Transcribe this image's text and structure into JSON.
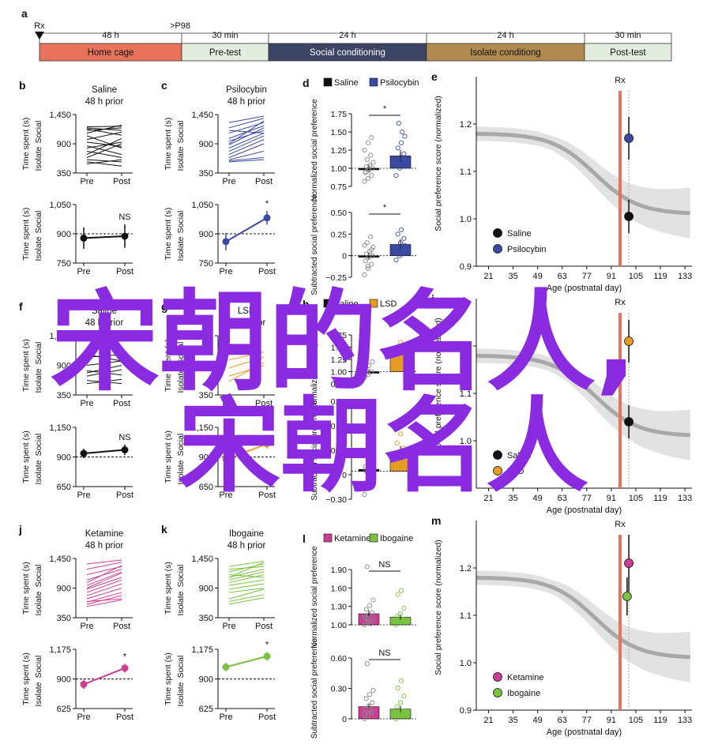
{
  "timeline": {
    "panel_letter": "a",
    "rx_label": "Rx",
    "p98_label": ">P98",
    "segments": [
      {
        "duration": "48 h",
        "label": "Home cage",
        "color": "#e8735a"
      },
      {
        "duration": "30 min",
        "label": "Pre-test",
        "color": "#e3ecdf"
      },
      {
        "duration": "24 h",
        "label": "Social conditioning",
        "color": "#3b4463"
      },
      {
        "duration": "24 h",
        "label": "Isolate conditiong",
        "color": "#b08a4e"
      },
      {
        "duration": "30 min",
        "label": "Post-test",
        "color": "#e3ecdf"
      }
    ]
  },
  "chart_data": [
    {
      "panel": "b",
      "type": "line",
      "title": "Saline",
      "subtitle": "48 h prior",
      "ylabel": "Time spent (s)",
      "ylabel_top": "Social",
      "ylabel_bottom": "Isolate",
      "categories": [
        "Pre",
        "Post"
      ],
      "yticks": [
        "1,450",
        "900",
        "350"
      ],
      "ylim": [
        350,
        1450
      ],
      "color": "#111111",
      "lines": [
        [
          1050,
          820
        ],
        [
          1150,
          1200
        ],
        [
          1220,
          1230
        ],
        [
          980,
          1120
        ],
        [
          760,
          640
        ],
        [
          640,
          900
        ],
        [
          560,
          480
        ],
        [
          1180,
          1060
        ],
        [
          860,
          700
        ],
        [
          700,
          1000
        ],
        [
          1100,
          1250
        ],
        [
          520,
          600
        ],
        [
          930,
          850
        ],
        [
          1200,
          1150
        ],
        [
          600,
          560
        ],
        [
          820,
          930
        ]
      ]
    },
    {
      "panel": "c",
      "type": "line",
      "title": "Psilocybin",
      "subtitle": "48 h prior",
      "ylabel": "Time spent (s)",
      "ylabel_top": "Social",
      "ylabel_bottom": "Isolate",
      "categories": [
        "Pre",
        "Post"
      ],
      "yticks": [
        "1,450",
        "900",
        "350"
      ],
      "ylim": [
        350,
        1450
      ],
      "color": "#3b4aa0",
      "lines": [
        [
          1300,
          1420
        ],
        [
          1200,
          1380
        ],
        [
          1100,
          1300
        ],
        [
          1000,
          1240
        ],
        [
          950,
          1150
        ],
        [
          880,
          1200
        ],
        [
          820,
          1100
        ],
        [
          760,
          1050
        ],
        [
          700,
          980
        ],
        [
          640,
          900
        ],
        [
          600,
          760
        ],
        [
          580,
          640
        ],
        [
          900,
          1330
        ],
        [
          1150,
          1100
        ],
        [
          560,
          600
        ]
      ]
    },
    {
      "panel": "b2",
      "type": "errorbar",
      "ylabel": "Time spent (s)",
      "ylabel_top": "Social",
      "ylabel_bottom": "Isolate",
      "categories": [
        "Pre",
        "Post"
      ],
      "yticks": [
        "1,050",
        "900",
        "750"
      ],
      "ylim": [
        750,
        1050
      ],
      "means": [
        878,
        888
      ],
      "errors": [
        55,
        60
      ],
      "ref": 900,
      "annotation": "NS",
      "color": "#111111"
    },
    {
      "panel": "c2",
      "type": "errorbar",
      "ylabel": "Time spent (s)",
      "ylabel_top": "Social",
      "ylabel_bottom": "Isolate",
      "categories": [
        "Pre",
        "Post"
      ],
      "yticks": [
        "1,050",
        "900",
        "750"
      ],
      "ylim": [
        750,
        1050
      ],
      "means": [
        860,
        982
      ],
      "errors": [
        45,
        35
      ],
      "ref": 900,
      "annotation": "*",
      "color": "#3b4aa0"
    },
    {
      "panel": "f",
      "type": "line",
      "title": "Saline",
      "subtitle": "48 h prior",
      "ylabel": "Time spent (s)",
      "ylabel_top": "Social",
      "ylabel_bottom": "Isolate",
      "categories": [
        "Pre",
        "Post"
      ],
      "yticks": [
        "1,450",
        "900",
        "350"
      ],
      "ylim": [
        350,
        1450
      ],
      "color": "#111111",
      "lines": [
        [
          1050,
          1100
        ],
        [
          900,
          980
        ],
        [
          800,
          720
        ],
        [
          700,
          820
        ],
        [
          620,
          560
        ],
        [
          560,
          640
        ],
        [
          1100,
          980
        ],
        [
          760,
          900
        ]
      ]
    },
    {
      "panel": "g",
      "type": "line",
      "title": "LSD",
      "subtitle": "48 h prior",
      "ylabel": "Time spent (s)",
      "ylabel_top": "Social",
      "ylabel_bottom": "Isolate",
      "categories": [
        "Pre",
        "Post"
      ],
      "yticks": [
        "1,450",
        "900",
        "350"
      ],
      "ylim": [
        350,
        1450
      ],
      "color": "#e69c24",
      "lines": [
        [
          1000,
          1150
        ],
        [
          850,
          1050
        ],
        [
          700,
          900
        ],
        [
          600,
          950
        ]
      ]
    },
    {
      "panel": "f2",
      "type": "errorbar",
      "ylabel": "Time spent (s)",
      "ylabel_top": "Social",
      "ylabel_bottom": "Isolate",
      "categories": [
        "Pre",
        "Post"
      ],
      "yticks": [
        "1,150",
        "900",
        "650"
      ],
      "ylim": [
        650,
        1150
      ],
      "means": [
        930,
        960
      ],
      "errors": [
        40,
        45
      ],
      "ref": 900,
      "annotation": "NS",
      "color": "#111111"
    },
    {
      "panel": "g2",
      "type": "errorbar",
      "ylabel": "Time spent (s)",
      "ylabel_top": "Social",
      "ylabel_bottom": "Isolate",
      "categories": [
        "Pre",
        "Post"
      ],
      "yticks": [
        "1,150",
        "900",
        "650"
      ],
      "ylim": [
        650,
        1150
      ],
      "means": [
        880,
        1010
      ],
      "errors": [
        40,
        40
      ],
      "ref": 900,
      "annotation": "",
      "color": "#e69c24"
    },
    {
      "panel": "j",
      "type": "line",
      "title": "Ketamine",
      "subtitle": "48 h prior",
      "ylabel": "Time spent (s)",
      "ylabel_top": "Social",
      "ylabel_bottom": "Isolate",
      "categories": [
        "Pre",
        "Post"
      ],
      "yticks": [
        "1,450",
        "900",
        "350"
      ],
      "ylim": [
        350,
        1450
      ],
      "color": "#cc3d93",
      "lines": [
        [
          1350,
          1420
        ],
        [
          1250,
          1380
        ],
        [
          1150,
          1300
        ],
        [
          1050,
          1250
        ],
        [
          950,
          1200
        ],
        [
          880,
          1100
        ],
        [
          820,
          1050
        ],
        [
          760,
          980
        ],
        [
          700,
          900
        ],
        [
          640,
          820
        ],
        [
          600,
          760
        ],
        [
          560,
          680
        ],
        [
          1000,
          1320
        ],
        [
          900,
          1180
        ],
        [
          650,
          700
        ]
      ]
    },
    {
      "panel": "k",
      "type": "line",
      "title": "Ibogaine",
      "subtitle": "48 h prior",
      "ylabel": "Time spent (s)",
      "ylabel_top": "Social",
      "ylabel_bottom": "Isolate",
      "categories": [
        "Pre",
        "Post"
      ],
      "yticks": [
        "1,450",
        "900",
        "350"
      ],
      "ylim": [
        350,
        1450
      ],
      "color": "#7cc242",
      "lines": [
        [
          1300,
          1400
        ],
        [
          1200,
          1350
        ],
        [
          1100,
          1250
        ],
        [
          1050,
          1200
        ],
        [
          1150,
          1100
        ],
        [
          1000,
          1150
        ],
        [
          950,
          1050
        ],
        [
          880,
          980
        ],
        [
          820,
          900
        ],
        [
          700,
          880
        ],
        [
          650,
          780
        ],
        [
          600,
          720
        ],
        [
          1250,
          1300
        ],
        [
          1100,
          1380
        ]
      ]
    },
    {
      "panel": "j2",
      "type": "errorbar",
      "ylabel": "Time spent (s)",
      "ylabel_top": "Social",
      "ylabel_bottom": "Isolate",
      "categories": [
        "Pre",
        "Post"
      ],
      "yticks": [
        "1,175",
        "900",
        "625"
      ],
      "ylim": [
        625,
        1175
      ],
      "means": [
        850,
        1000
      ],
      "errors": [
        45,
        40
      ],
      "ref": 900,
      "annotation": "*",
      "color": "#cc3d93"
    },
    {
      "panel": "k2",
      "type": "errorbar",
      "ylabel": "Time spent (s)",
      "ylabel_top": "Social",
      "ylabel_bottom": "Isolate",
      "categories": [
        "Pre",
        "Post"
      ],
      "yticks": [
        "1,175",
        "900",
        "625"
      ],
      "ylim": [
        625,
        1175
      ],
      "means": [
        1010,
        1110
      ],
      "errors": [
        40,
        40
      ],
      "ref": 900,
      "annotation": "*",
      "color": "#7cc242"
    },
    {
      "panel": "d",
      "type": "bar",
      "legend": [
        "Saline",
        "Psilocybin"
      ],
      "colors": [
        "#111111",
        "#3b4aa0"
      ],
      "ylabel": "Normalized social preference",
      "yticks": [
        "1.75",
        "1.50",
        "1.25",
        "1.00",
        "0.75"
      ],
      "ylim": [
        0.75,
        1.75
      ],
      "values": [
        1.0,
        1.17
      ],
      "errors": [
        0.05,
        0.08
      ],
      "baseline": 1.0,
      "annotation": "*",
      "points": [
        [
          0.82,
          0.86,
          0.9,
          0.94,
          0.97,
          1.0,
          1.02,
          1.04,
          1.08,
          1.12,
          1.18,
          1.25,
          1.35,
          1.42,
          0.95,
          0.99
        ],
        [
          0.9,
          1.0,
          1.05,
          1.1,
          1.15,
          1.2,
          1.28,
          1.35,
          1.44,
          1.62,
          1.5,
          1.08
        ]
      ]
    },
    {
      "panel": "d2",
      "type": "bar",
      "ylabel": "Subtracted social preference",
      "yticks": [
        "0.50",
        "0.25",
        "0",
        "−0.25"
      ],
      "ylim": [
        -0.25,
        0.5
      ],
      "values": [
        0.0,
        0.13
      ],
      "errors": [
        0.04,
        0.06
      ],
      "baseline": 0,
      "annotation": "*",
      "points": [
        [
          -0.22,
          -0.15,
          -0.1,
          -0.06,
          -0.02,
          0.0,
          0.02,
          0.05,
          0.1,
          0.15,
          0.22,
          0.12,
          -0.12,
          0.07
        ],
        [
          -0.05,
          0.0,
          0.05,
          0.1,
          0.15,
          0.2,
          0.25,
          0.3,
          0.12,
          0.08,
          0.02
        ]
      ]
    },
    {
      "panel": "h",
      "type": "bar",
      "legend": [
        "Saline",
        "LSD"
      ],
      "colors": [
        "#111111",
        "#e69c24"
      ],
      "ylabel": "Normalized social preference",
      "yticks": [
        "1.75",
        "1.50",
        "1.25",
        "1.00",
        "0.75"
      ],
      "ylim": [
        0.75,
        1.75
      ],
      "values": [
        1.0,
        1.42
      ],
      "errors": [
        0.05,
        0.08
      ],
      "baseline": 1.0,
      "annotation": "",
      "points": [
        [
          0.88,
          0.94,
          1.0,
          1.05,
          1.12,
          1.2,
          0.96
        ],
        [
          1.2,
          1.3,
          1.4,
          1.5,
          1.6,
          1.35
        ]
      ]
    },
    {
      "panel": "h2",
      "type": "bar",
      "ylabel": "Subtracted social preference",
      "yticks": [
        "0.75",
        "0.50",
        "0.25",
        "0",
        "−0.30"
      ],
      "ylim": [
        -0.3,
        0.75
      ],
      "values": [
        0.02,
        0.2
      ],
      "errors": [
        0.05,
        0.07
      ],
      "baseline": 0,
      "annotation": "",
      "points": [
        [
          -0.25,
          -0.15,
          -0.05,
          0.05,
          0.12,
          0.2,
          0.0
        ],
        [
          0.05,
          0.12,
          0.2,
          0.3,
          0.4,
          0.25
        ]
      ]
    },
    {
      "panel": "l",
      "type": "bar",
      "legend": [
        "Ketamine",
        "Ibogaine"
      ],
      "colors": [
        "#cc3d93",
        "#7cc242"
      ],
      "ylabel": "Normalized social preference",
      "yticks": [
        "1.90",
        "1.60",
        "1.30",
        "1.00"
      ],
      "ylim": [
        1.0,
        2.0
      ],
      "values": [
        1.2,
        1.14
      ],
      "errors": [
        0.06,
        0.05
      ],
      "baseline": 1.0,
      "annotation": "NS",
      "points": [
        [
          1.0,
          1.05,
          1.08,
          1.12,
          1.18,
          1.22,
          1.28,
          1.35,
          1.45,
          2.05,
          1.02,
          1.15,
          1.1
        ],
        [
          1.0,
          1.05,
          1.1,
          1.15,
          1.2,
          1.3,
          1.55,
          1.62,
          1.08
        ]
      ]
    },
    {
      "panel": "l2",
      "type": "bar",
      "ylabel": "Subtracted social preference",
      "yticks": [
        "0.60",
        "0.30",
        "0"
      ],
      "ylim": [
        0,
        0.75
      ],
      "values": [
        0.15,
        0.12
      ],
      "errors": [
        0.04,
        0.04
      ],
      "baseline": 0,
      "annotation": "NS",
      "points": [
        [
          0.0,
          0.04,
          0.08,
          0.12,
          0.16,
          0.2,
          0.25,
          0.3,
          0.35,
          0.68,
          0.1,
          0.06
        ],
        [
          0.0,
          0.05,
          0.1,
          0.15,
          0.2,
          0.28,
          0.38,
          0.47,
          0.08
        ]
      ]
    },
    {
      "panel": "e",
      "type": "line",
      "title": "Rx",
      "xlabel": "Age (postnatal day)",
      "ylabel": "Social preference score (normalized)",
      "xticks": [
        21,
        35,
        49,
        63,
        77,
        91,
        105,
        119,
        133
      ],
      "yticks": [
        0.9,
        1.0,
        1.1,
        1.2
      ],
      "xlim": [
        14,
        137
      ],
      "ylim": [
        0.9,
        1.3
      ],
      "rx": 96,
      "points": [
        {
          "name": "Saline",
          "x": 101,
          "y": 1.005,
          "err": 0.035,
          "color": "#111111"
        },
        {
          "name": "Psilocybin",
          "x": 101,
          "y": 1.17,
          "err": 0.045,
          "color": "#3b4aa0"
        }
      ]
    },
    {
      "panel": "i",
      "type": "line",
      "title": "Rx",
      "xlabel": "Age (postnatal day)",
      "ylabel": "Social preference score (normalized)",
      "xticks": [
        21,
        35,
        49,
        63,
        77,
        91,
        105,
        119,
        133
      ],
      "yticks": [
        1.0,
        1.1,
        1.2
      ],
      "xlim": [
        14,
        137
      ],
      "ylim": [
        0.9,
        1.3
      ],
      "rx": 96,
      "points": [
        {
          "name": "Saline",
          "x": 101,
          "y": 1.04,
          "err": 0.035,
          "color": "#111111"
        },
        {
          "name": "LSD",
          "x": 101,
          "y": 1.21,
          "err": 0.045,
          "color": "#e69c24"
        }
      ]
    },
    {
      "panel": "m",
      "type": "line",
      "title": "Rx",
      "xlabel": "Age (postnatal day)",
      "ylabel": "Social preference score (normalized)",
      "xticks": [
        21,
        35,
        49,
        63,
        77,
        91,
        105,
        119,
        133
      ],
      "yticks": [
        0.9,
        1.0,
        1.1,
        1.2
      ],
      "xlim": [
        14,
        137
      ],
      "ylim": [
        0.9,
        1.3
      ],
      "rx": 96,
      "points": [
        {
          "name": "Ketamine",
          "x": 101,
          "y": 1.21,
          "err": 0.06,
          "color": "#cc3d93"
        },
        {
          "name": "Ibogaine",
          "x": 100,
          "y": 1.14,
          "err": 0.04,
          "color": "#7cc242"
        }
      ]
    }
  ],
  "overlay": {
    "line1": "宋朝的名人,",
    "line2": "宋朝名人",
    "color": "#8a2be2"
  }
}
